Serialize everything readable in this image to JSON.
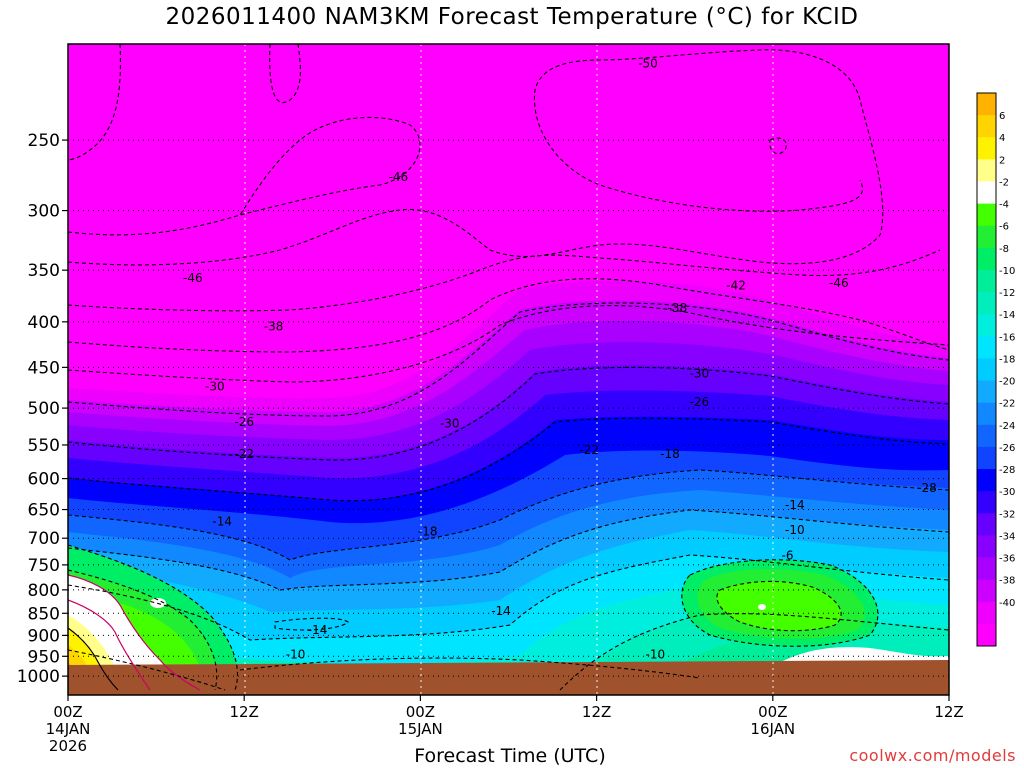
{
  "chart_data": {
    "type": "time-height contour",
    "title": "2026011400 NAM3KM Forecast Temperature (°C) for KCID",
    "xlabel": "Forecast Time (UTC)",
    "ylabel": "",
    "yaxis": {
      "scale": "log-pressure",
      "units": "hPa",
      "range": [
        1050,
        195
      ],
      "inverted": true,
      "ticks": [
        250,
        300,
        350,
        400,
        450,
        500,
        550,
        600,
        650,
        700,
        750,
        800,
        850,
        900,
        950,
        1000
      ]
    },
    "xaxis": {
      "range_hours": [
        0,
        60
      ],
      "ticks": [
        {
          "hour": 0,
          "lines": [
            "00Z",
            "14JAN",
            "2026"
          ]
        },
        {
          "hour": 12,
          "lines": [
            "12Z"
          ]
        },
        {
          "hour": 24,
          "lines": [
            "00Z",
            "15JAN"
          ]
        },
        {
          "hour": 36,
          "lines": [
            "12Z"
          ]
        },
        {
          "hour": 48,
          "lines": [
            "00Z",
            "16JAN"
          ]
        },
        {
          "hour": 60,
          "lines": [
            "12Z"
          ]
        }
      ]
    },
    "grid": true,
    "colorbar": {
      "labels": [
        "6",
        "4",
        "2",
        "-2",
        "-4",
        "-6",
        "-8",
        "-10",
        "-12",
        "-14",
        "-16",
        "-18",
        "-20",
        "-22",
        "-24",
        "-26",
        "-28",
        "-30",
        "-32",
        "-34",
        "-36",
        "-38",
        "-40"
      ],
      "colors": [
        "#ffb300",
        "#ffd400",
        "#fff200",
        "#ffff8a",
        "#ffffff",
        "#44ff00",
        "#22ee33",
        "#00ee66",
        "#00ee99",
        "#00eebb",
        "#00eedd",
        "#00e5ff",
        "#00ccff",
        "#11aaff",
        "#1188ff",
        "#1166ff",
        "#1144ff",
        "#0000ff",
        "#3300ff",
        "#6600ff",
        "#8800ff",
        "#aa00ff",
        "#cc00ff",
        "#ee00ff",
        "#ff00ff"
      ]
    },
    "contour_labels": [
      {
        "text": "-50",
        "hour": 39.5,
        "p": 205
      },
      {
        "text": "-46",
        "hour": 22.5,
        "p": 275
      },
      {
        "text": "-46",
        "hour": 8.5,
        "p": 357
      },
      {
        "text": "-46",
        "hour": 52.5,
        "p": 362
      },
      {
        "text": "-42",
        "hour": 45.5,
        "p": 364
      },
      {
        "text": "-38",
        "hour": 14.0,
        "p": 405
      },
      {
        "text": "-38",
        "hour": 41.5,
        "p": 386
      },
      {
        "text": "-30",
        "hour": 10.0,
        "p": 473
      },
      {
        "text": "-30",
        "hour": 26.0,
        "p": 520
      },
      {
        "text": "-30",
        "hour": 43.0,
        "p": 457
      },
      {
        "text": "-26",
        "hour": 12.0,
        "p": 518
      },
      {
        "text": "-26",
        "hour": 43.0,
        "p": 492
      },
      {
        "text": "-28",
        "hour": 58.5,
        "p": 615
      },
      {
        "text": "-22",
        "hour": 12.0,
        "p": 563
      },
      {
        "text": "-22",
        "hour": 35.5,
        "p": 557
      },
      {
        "text": "-18",
        "hour": 41.0,
        "p": 563
      },
      {
        "text": "-18",
        "hour": 24.5,
        "p": 688
      },
      {
        "text": "-14",
        "hour": 10.5,
        "p": 670
      },
      {
        "text": "-14",
        "hour": 49.5,
        "p": 642
      },
      {
        "text": "-14",
        "hour": 29.5,
        "p": 845
      },
      {
        "text": "-14",
        "hour": 17.0,
        "p": 888
      },
      {
        "text": "-10",
        "hour": 49.5,
        "p": 685
      },
      {
        "text": "-10",
        "hour": 15.5,
        "p": 945
      },
      {
        "text": "-10",
        "hour": 40.0,
        "p": 945
      },
      {
        "text": "-6",
        "hour": 49.0,
        "p": 732
      }
    ]
  },
  "credit": "coolwx.com/models"
}
